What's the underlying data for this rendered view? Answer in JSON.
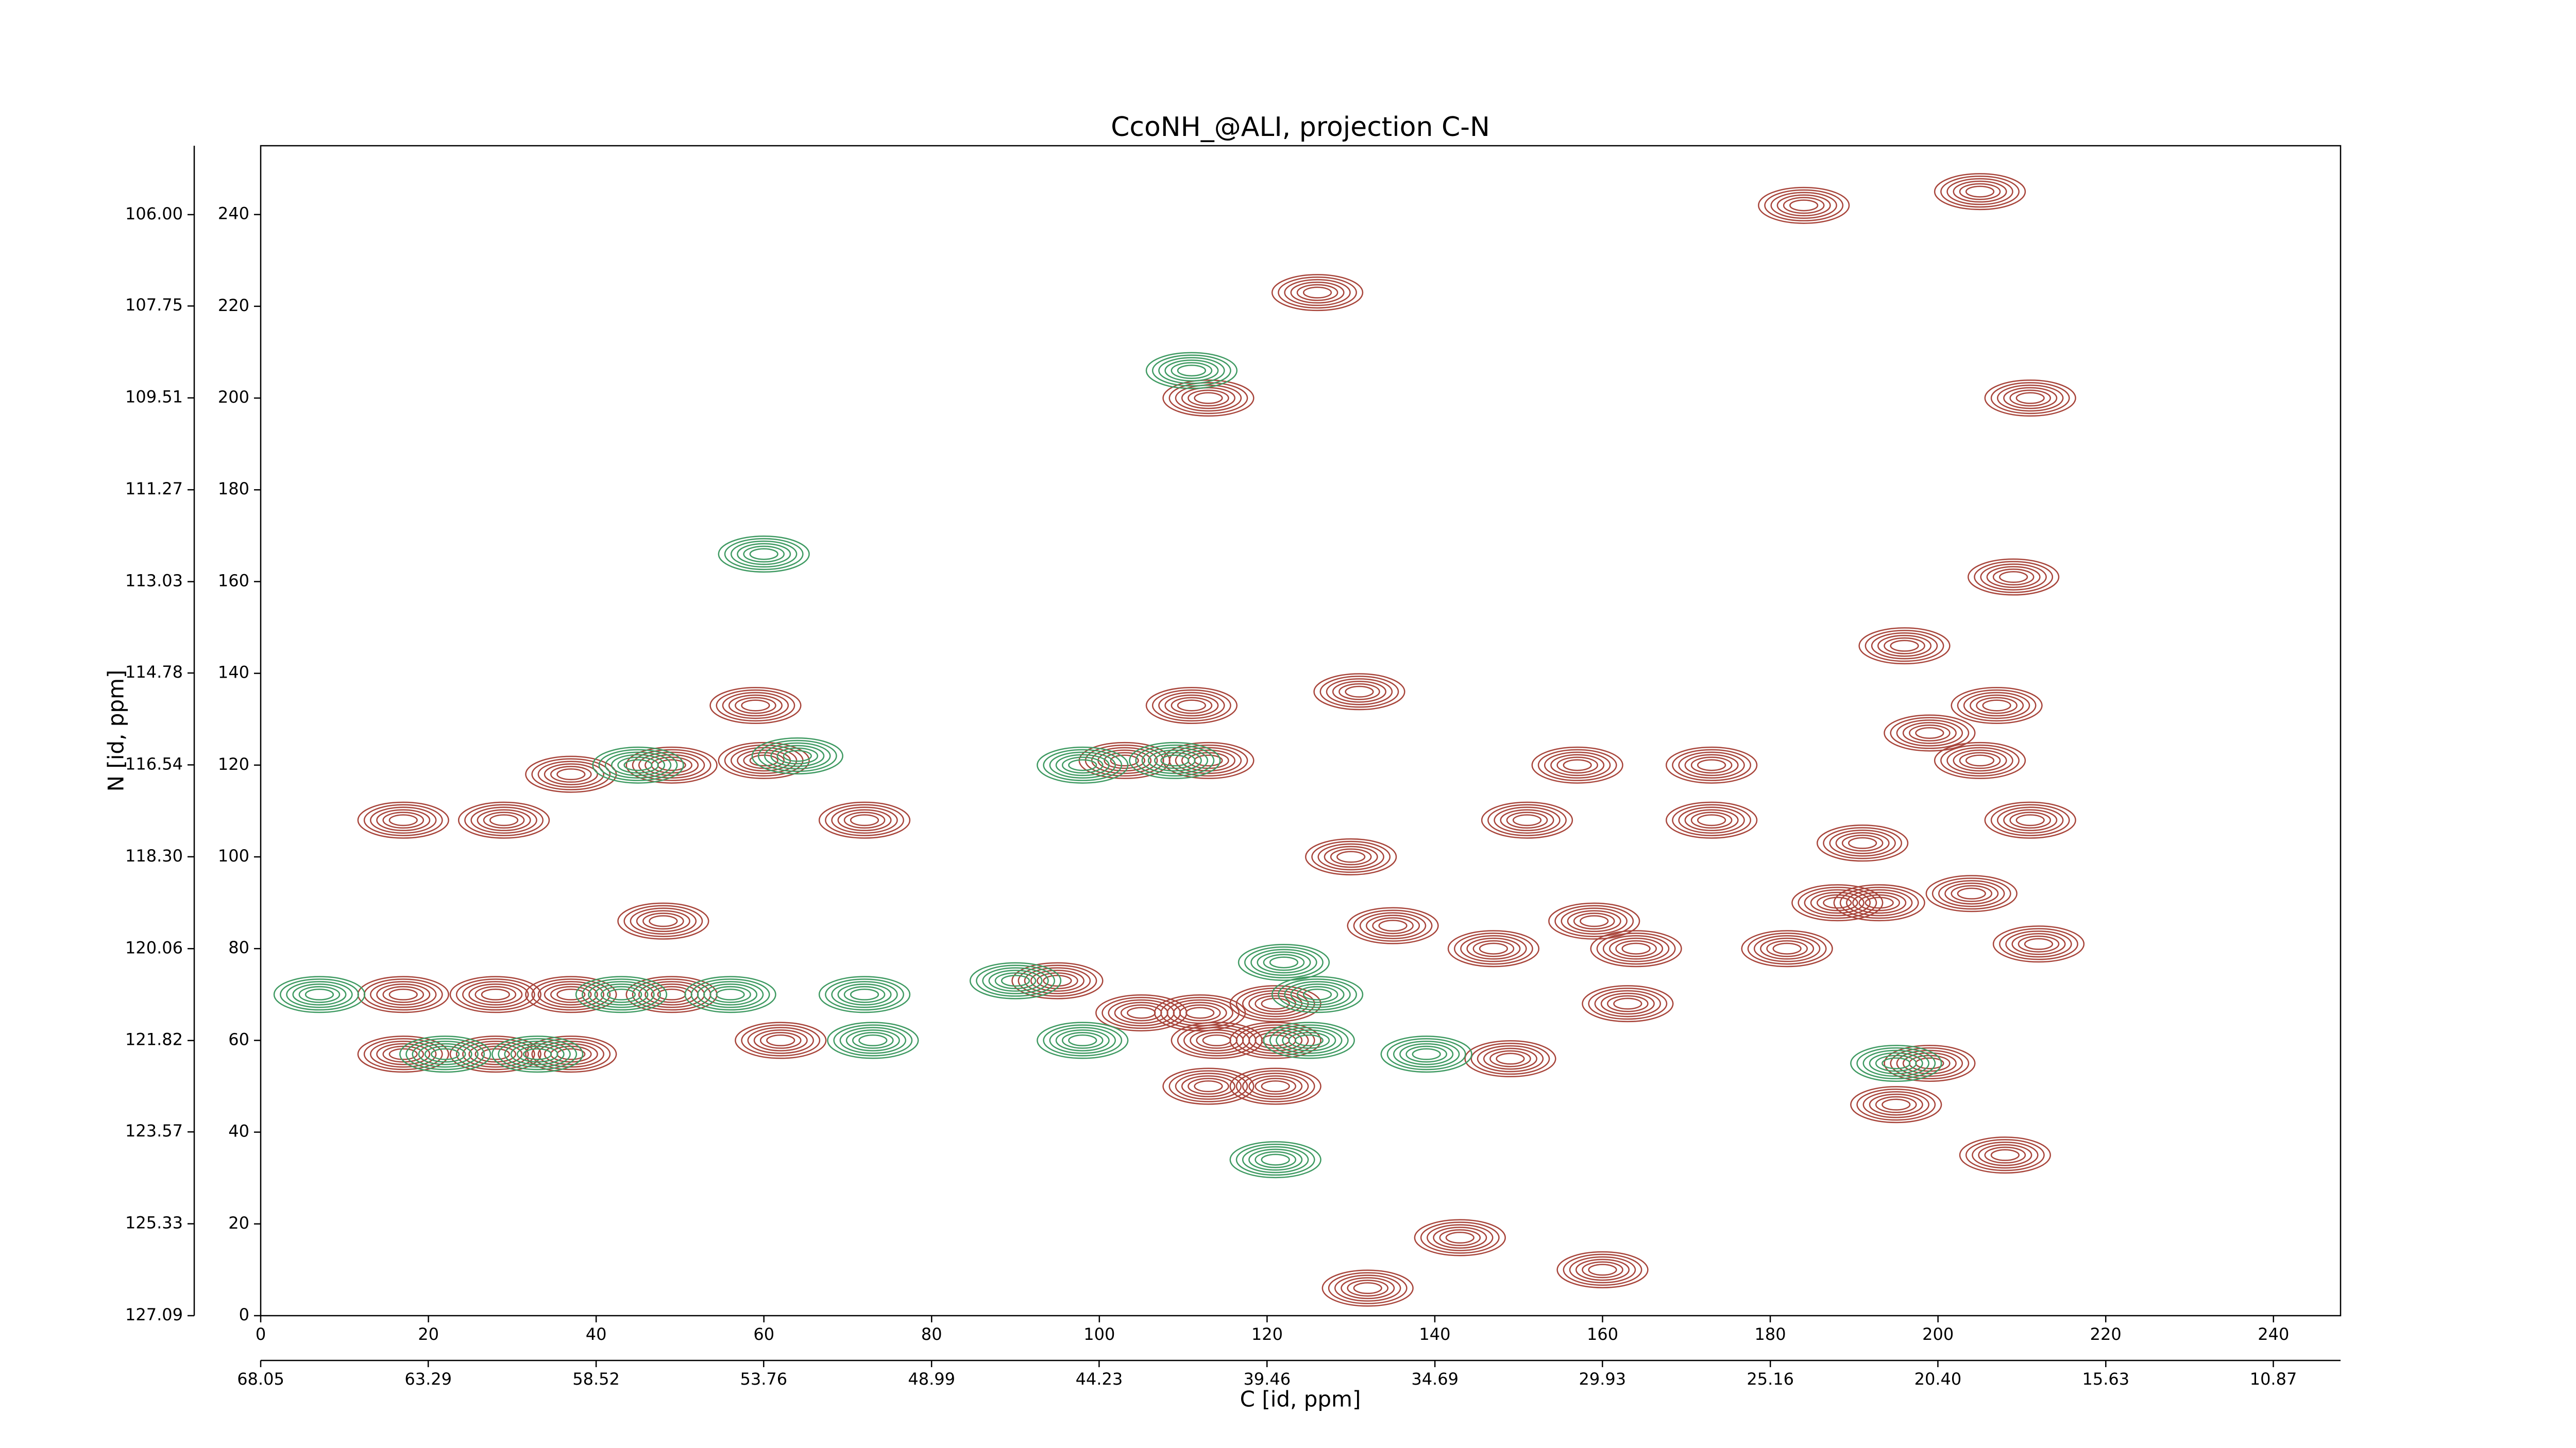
{
  "chart_data": {
    "type": "contour",
    "title": "CcoNH_@ALI, projection C-N",
    "xlabel": "C [id, ppm]",
    "ylabel": "N [id, ppm]",
    "xlim": [
      0,
      248
    ],
    "ylim": [
      0,
      255
    ],
    "xticks": [
      0,
      20,
      40,
      60,
      80,
      100,
      120,
      140,
      160,
      180,
      200,
      220,
      240
    ],
    "yticks": [
      0,
      20,
      40,
      60,
      80,
      100,
      120,
      140,
      160,
      180,
      200,
      220,
      240
    ],
    "x2lim": [
      68.05,
      8.96
    ],
    "x2ticks": [
      68.05,
      63.29,
      58.52,
      53.76,
      48.99,
      44.23,
      39.46,
      34.69,
      29.93,
      25.16,
      {
        "value": 20.4,
        "label": "20.40"
      },
      15.63,
      10.87
    ],
    "y2lim": [
      127.09,
      104.68
    ],
    "y2ticks": [
      127.09,
      125.33,
      123.57,
      121.82,
      120.06,
      {
        "value": 118.3,
        "label": "118.30"
      },
      116.54,
      114.78,
      113.03,
      111.27,
      109.51,
      107.75,
      {
        "value": 106,
        "label": "106.00"
      }
    ],
    "series": [
      {
        "color": "#a8453b",
        "x": [
          184,
          205,
          211,
          113,
          126,
          209,
          196,
          131,
          59,
          111,
          207,
          199,
          103,
          113,
          49,
          60,
          157,
          173,
          37,
          205,
          17,
          29,
          72,
          151,
          173,
          211,
          191,
          130,
          188,
          193,
          204,
          48,
          135,
          159,
          147,
          164,
          182,
          212,
          95,
          17,
          28,
          37,
          49,
          163,
          105,
          112,
          121,
          62,
          114,
          121,
          17,
          28,
          37,
          149,
          199,
          195,
          208,
          143,
          132,
          160,
          113,
          121
        ],
        "y": [
          242,
          245,
          200,
          200,
          223,
          161,
          146,
          136,
          133,
          133,
          133,
          127,
          121,
          121,
          120,
          121,
          120,
          120,
          118,
          121,
          108,
          108,
          108,
          108,
          108,
          108,
          103,
          100,
          90,
          90,
          92,
          86,
          85,
          86,
          80,
          80,
          80,
          81,
          73,
          70,
          70,
          70,
          70,
          68,
          66,
          66,
          68,
          60,
          60,
          60,
          57,
          57,
          57,
          56,
          55,
          46,
          35,
          17,
          6,
          10,
          50,
          50
        ]
      },
      {
        "color": "#3f9a62",
        "x": [
          60,
          111,
          45,
          64,
          98,
          109,
          56,
          43,
          22,
          33,
          7,
          72,
          73,
          98,
          90,
          126,
          125,
          122,
          121,
          195,
          139
        ],
        "y": [
          166,
          206,
          120,
          122,
          120,
          121,
          70,
          70,
          57,
          57,
          70,
          70,
          60,
          60,
          73,
          70,
          60,
          77,
          34,
          55,
          57
        ]
      }
    ]
  }
}
